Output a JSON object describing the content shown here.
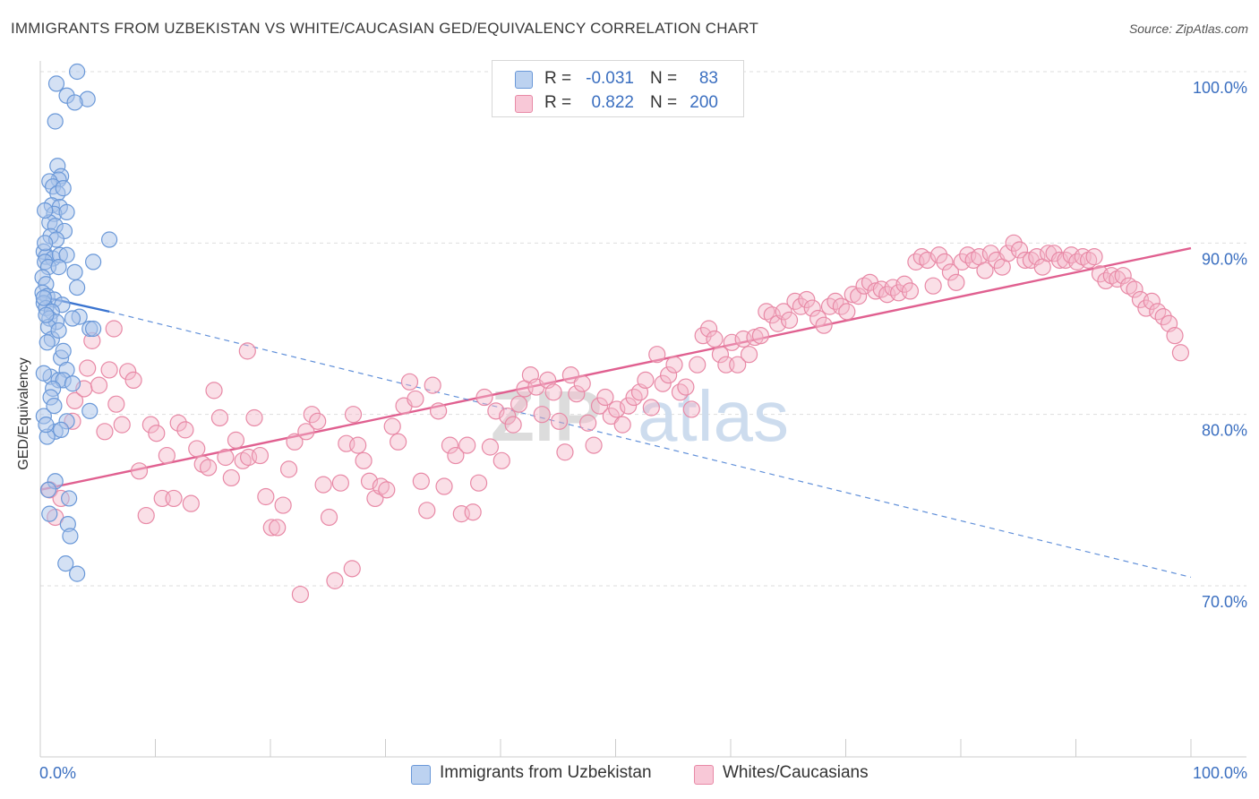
{
  "header": {
    "title": "IMMIGRANTS FROM UZBEKISTAN VS WHITE/CAUCASIAN GED/EQUIVALENCY CORRELATION CHART",
    "source": "Source: ZipAtlas.com"
  },
  "legend": {
    "rows": [
      {
        "r_label": "R =",
        "r_value": "-0.031",
        "n_label": "N =",
        "n_value": "83"
      },
      {
        "r_label": "R =",
        "r_value": "0.822",
        "n_label": "N =",
        "n_value": "200"
      }
    ]
  },
  "series_legend": [
    {
      "label": "Immigrants from Uzbekistan"
    },
    {
      "label": "Whites/Caucasians"
    }
  ],
  "watermark": {
    "zip": "ZIP",
    "atlas": "atlas"
  },
  "chart_data": {
    "type": "scatter",
    "title": "IMMIGRANTS FROM UZBEKISTAN VS WHITE/CAUCASIAN GED/EQUIVALENCY CORRELATION CHART",
    "xlabel": "",
    "ylabel": "GED/Equivalency",
    "xlim": [
      0,
      100
    ],
    "ylim": [
      60,
      101
    ],
    "x_tick_labels": [
      "0.0%",
      "100.0%"
    ],
    "y_ticks": [
      {
        "value": 100,
        "label": "100.0%"
      },
      {
        "value": 90,
        "label": "90.0%"
      },
      {
        "value": 80,
        "label": "80.0%"
      },
      {
        "value": 70,
        "label": "70.0%"
      }
    ],
    "grid": true,
    "colors": {
      "blue_fill": "#a9c4ea",
      "blue_stroke": "#6a98d8",
      "blue_line": "#3a74d0",
      "pink_fill": "#f4b7ca",
      "pink_stroke": "#e889a6",
      "pink_line": "#e06090",
      "label_blue": "#3b6fc0"
    },
    "series": [
      {
        "name": "Immigrants from Uzbekistan",
        "color": "#a9c4ea",
        "r": -0.031,
        "n": 83,
        "trend_solid": {
          "x": [
            0,
            6
          ],
          "y": [
            86.9,
            86.0
          ]
        },
        "trend_dashed": {
          "x": [
            6,
            100
          ],
          "y": [
            86.0,
            70.5
          ]
        },
        "points": [
          [
            3.2,
            100.0
          ],
          [
            1.4,
            99.3
          ],
          [
            4.1,
            98.4
          ],
          [
            2.3,
            98.6
          ],
          [
            3.0,
            98.2
          ],
          [
            1.3,
            97.1
          ],
          [
            1.5,
            94.5
          ],
          [
            1.8,
            93.9
          ],
          [
            1.6,
            93.7
          ],
          [
            0.8,
            93.6
          ],
          [
            1.1,
            93.3
          ],
          [
            1.5,
            92.9
          ],
          [
            1.0,
            92.2
          ],
          [
            1.7,
            92.1
          ],
          [
            1.2,
            91.7
          ],
          [
            2.3,
            91.8
          ],
          [
            0.8,
            91.2
          ],
          [
            1.3,
            91.0
          ],
          [
            2.1,
            90.7
          ],
          [
            0.9,
            90.4
          ],
          [
            1.4,
            90.2
          ],
          [
            6.0,
            90.2
          ],
          [
            0.3,
            89.5
          ],
          [
            0.5,
            89.2
          ],
          [
            1.1,
            89.1
          ],
          [
            1.7,
            89.3
          ],
          [
            2.3,
            89.3
          ],
          [
            0.4,
            88.9
          ],
          [
            0.7,
            88.6
          ],
          [
            1.6,
            88.6
          ],
          [
            4.6,
            88.9
          ],
          [
            0.2,
            88.0
          ],
          [
            0.5,
            87.6
          ],
          [
            0.2,
            87.1
          ],
          [
            3.2,
            87.4
          ],
          [
            0.6,
            86.9
          ],
          [
            1.2,
            86.7
          ],
          [
            0.3,
            86.5
          ],
          [
            0.5,
            86.2
          ],
          [
            1.9,
            86.4
          ],
          [
            1.0,
            86.0
          ],
          [
            0.8,
            85.6
          ],
          [
            3.4,
            85.7
          ],
          [
            1.4,
            85.4
          ],
          [
            2.8,
            85.6
          ],
          [
            0.7,
            85.1
          ],
          [
            4.3,
            85.0
          ],
          [
            1.0,
            84.4
          ],
          [
            0.6,
            84.2
          ],
          [
            4.6,
            85.0
          ],
          [
            1.8,
            83.3
          ],
          [
            2.3,
            82.6
          ],
          [
            0.9,
            82.2
          ],
          [
            1.6,
            82.0
          ],
          [
            2.0,
            82.0
          ],
          [
            2.8,
            81.8
          ],
          [
            1.1,
            81.5
          ],
          [
            0.9,
            81.0
          ],
          [
            4.3,
            80.2
          ],
          [
            0.3,
            79.9
          ],
          [
            2.3,
            79.6
          ],
          [
            1.3,
            79.0
          ],
          [
            1.8,
            79.1
          ],
          [
            0.6,
            78.7
          ],
          [
            1.3,
            76.1
          ],
          [
            0.7,
            75.6
          ],
          [
            2.5,
            75.1
          ],
          [
            0.8,
            74.2
          ],
          [
            2.4,
            73.6
          ],
          [
            2.6,
            72.9
          ],
          [
            2.2,
            71.3
          ],
          [
            3.2,
            70.7
          ],
          [
            0.4,
            90.0
          ],
          [
            0.3,
            86.8
          ],
          [
            0.5,
            85.8
          ],
          [
            1.6,
            84.9
          ],
          [
            2.0,
            83.7
          ],
          [
            0.3,
            82.4
          ],
          [
            1.2,
            80.5
          ],
          [
            0.5,
            79.4
          ],
          [
            3.0,
            88.3
          ],
          [
            0.4,
            91.9
          ],
          [
            2.0,
            93.2
          ]
        ]
      },
      {
        "name": "Whites/Caucasians",
        "color": "#f4b7ca",
        "r": 0.822,
        "n": 200,
        "trend": {
          "x": [
            0,
            100
          ],
          "y": [
            75.6,
            89.7
          ]
        },
        "points": [
          [
            0.8,
            75.6
          ],
          [
            1.3,
            74.0
          ],
          [
            1.8,
            75.1
          ],
          [
            2.8,
            79.6
          ],
          [
            3.0,
            80.8
          ],
          [
            3.8,
            81.5
          ],
          [
            4.1,
            82.7
          ],
          [
            4.5,
            84.3
          ],
          [
            5.1,
            81.7
          ],
          [
            5.6,
            79.0
          ],
          [
            6.0,
            82.6
          ],
          [
            6.6,
            80.6
          ],
          [
            7.1,
            79.4
          ],
          [
            7.6,
            82.5
          ],
          [
            8.1,
            82.0
          ],
          [
            8.6,
            76.7
          ],
          [
            9.2,
            74.1
          ],
          [
            9.6,
            79.4
          ],
          [
            10.1,
            78.9
          ],
          [
            10.6,
            75.1
          ],
          [
            11.0,
            77.6
          ],
          [
            11.6,
            75.1
          ],
          [
            12.0,
            79.5
          ],
          [
            12.6,
            79.1
          ],
          [
            13.1,
            74.8
          ],
          [
            13.6,
            78.0
          ],
          [
            14.1,
            77.1
          ],
          [
            14.6,
            76.9
          ],
          [
            15.1,
            81.4
          ],
          [
            15.6,
            79.8
          ],
          [
            16.1,
            77.5
          ],
          [
            16.6,
            76.3
          ],
          [
            17.0,
            78.5
          ],
          [
            17.6,
            77.3
          ],
          [
            18.1,
            77.5
          ],
          [
            18.6,
            79.8
          ],
          [
            19.1,
            77.6
          ],
          [
            19.6,
            75.2
          ],
          [
            20.1,
            73.4
          ],
          [
            20.6,
            73.4
          ],
          [
            21.1,
            74.7
          ],
          [
            21.6,
            76.8
          ],
          [
            22.1,
            78.4
          ],
          [
            22.6,
            69.5
          ],
          [
            23.1,
            79.0
          ],
          [
            23.6,
            80.0
          ],
          [
            24.1,
            79.6
          ],
          [
            24.6,
            75.9
          ],
          [
            25.1,
            74.0
          ],
          [
            25.6,
            70.3
          ],
          [
            26.1,
            76.0
          ],
          [
            26.6,
            78.3
          ],
          [
            27.1,
            71.0
          ],
          [
            27.6,
            78.2
          ],
          [
            28.1,
            77.3
          ],
          [
            28.6,
            76.1
          ],
          [
            29.1,
            75.1
          ],
          [
            29.6,
            75.8
          ],
          [
            30.1,
            75.6
          ],
          [
            30.6,
            79.3
          ],
          [
            31.1,
            78.4
          ],
          [
            31.6,
            80.5
          ],
          [
            32.1,
            81.9
          ],
          [
            32.6,
            80.9
          ],
          [
            33.1,
            76.1
          ],
          [
            33.6,
            74.4
          ],
          [
            34.1,
            81.7
          ],
          [
            34.6,
            80.2
          ],
          [
            35.1,
            75.8
          ],
          [
            35.6,
            78.2
          ],
          [
            36.1,
            77.6
          ],
          [
            36.6,
            74.2
          ],
          [
            37.1,
            78.2
          ],
          [
            37.6,
            74.3
          ],
          [
            38.1,
            76.0
          ],
          [
            38.6,
            81.0
          ],
          [
            39.1,
            78.1
          ],
          [
            39.6,
            80.2
          ],
          [
            40.1,
            77.3
          ],
          [
            40.6,
            79.9
          ],
          [
            41.1,
            79.4
          ],
          [
            41.6,
            80.6
          ],
          [
            42.1,
            81.5
          ],
          [
            42.6,
            82.3
          ],
          [
            43.1,
            81.6
          ],
          [
            43.6,
            80.0
          ],
          [
            44.1,
            82.0
          ],
          [
            44.6,
            81.3
          ],
          [
            45.1,
            79.6
          ],
          [
            45.6,
            77.8
          ],
          [
            46.1,
            82.3
          ],
          [
            46.6,
            81.2
          ],
          [
            47.1,
            81.8
          ],
          [
            47.6,
            79.5
          ],
          [
            48.1,
            78.2
          ],
          [
            48.6,
            80.5
          ],
          [
            49.1,
            81.0
          ],
          [
            49.6,
            79.9
          ],
          [
            50.1,
            80.3
          ],
          [
            50.6,
            79.4
          ],
          [
            51.1,
            80.5
          ],
          [
            51.6,
            81.0
          ],
          [
            52.1,
            81.3
          ],
          [
            52.6,
            82.0
          ],
          [
            53.1,
            80.4
          ],
          [
            53.6,
            83.5
          ],
          [
            54.1,
            81.8
          ],
          [
            54.6,
            82.3
          ],
          [
            55.1,
            82.9
          ],
          [
            55.6,
            81.3
          ],
          [
            56.1,
            81.6
          ],
          [
            56.6,
            80.3
          ],
          [
            57.1,
            82.9
          ],
          [
            57.6,
            84.6
          ],
          [
            58.1,
            85.0
          ],
          [
            58.6,
            84.4
          ],
          [
            59.1,
            83.5
          ],
          [
            59.6,
            82.9
          ],
          [
            60.1,
            84.2
          ],
          [
            60.6,
            82.9
          ],
          [
            61.1,
            84.4
          ],
          [
            61.6,
            83.5
          ],
          [
            62.1,
            84.5
          ],
          [
            62.6,
            84.6
          ],
          [
            63.1,
            86.0
          ],
          [
            63.6,
            85.8
          ],
          [
            64.1,
            85.3
          ],
          [
            64.6,
            86.0
          ],
          [
            65.1,
            85.5
          ],
          [
            65.6,
            86.6
          ],
          [
            66.1,
            86.3
          ],
          [
            66.6,
            86.7
          ],
          [
            67.1,
            86.2
          ],
          [
            67.6,
            85.6
          ],
          [
            68.1,
            85.2
          ],
          [
            68.6,
            86.3
          ],
          [
            69.1,
            86.6
          ],
          [
            69.6,
            86.3
          ],
          [
            70.1,
            86.0
          ],
          [
            70.6,
            87.0
          ],
          [
            71.1,
            86.9
          ],
          [
            71.6,
            87.5
          ],
          [
            72.1,
            87.7
          ],
          [
            72.6,
            87.2
          ],
          [
            73.1,
            87.3
          ],
          [
            73.6,
            87.0
          ],
          [
            74.1,
            87.4
          ],
          [
            74.6,
            87.1
          ],
          [
            75.1,
            87.6
          ],
          [
            75.6,
            87.2
          ],
          [
            76.1,
            88.9
          ],
          [
            76.6,
            89.2
          ],
          [
            77.1,
            89.0
          ],
          [
            77.6,
            87.5
          ],
          [
            78.1,
            89.3
          ],
          [
            78.6,
            88.9
          ],
          [
            79.1,
            88.3
          ],
          [
            79.6,
            87.7
          ],
          [
            80.1,
            88.9
          ],
          [
            80.6,
            89.3
          ],
          [
            81.1,
            89.0
          ],
          [
            81.6,
            89.2
          ],
          [
            82.1,
            88.4
          ],
          [
            82.6,
            89.4
          ],
          [
            83.1,
            89.0
          ],
          [
            83.6,
            88.6
          ],
          [
            84.1,
            89.4
          ],
          [
            84.6,
            90.0
          ],
          [
            85.1,
            89.6
          ],
          [
            85.6,
            89.0
          ],
          [
            86.1,
            89.0
          ],
          [
            86.6,
            89.2
          ],
          [
            87.1,
            88.6
          ],
          [
            87.6,
            89.4
          ],
          [
            88.1,
            89.4
          ],
          [
            88.6,
            89.0
          ],
          [
            89.1,
            89.0
          ],
          [
            89.6,
            89.3
          ],
          [
            90.1,
            88.9
          ],
          [
            90.6,
            89.2
          ],
          [
            91.1,
            89.0
          ],
          [
            91.6,
            89.2
          ],
          [
            92.1,
            88.2
          ],
          [
            92.6,
            87.8
          ],
          [
            93.1,
            88.1
          ],
          [
            93.6,
            87.9
          ],
          [
            94.1,
            88.1
          ],
          [
            94.6,
            87.5
          ],
          [
            95.1,
            87.3
          ],
          [
            95.6,
            86.7
          ],
          [
            96.1,
            86.2
          ],
          [
            96.6,
            86.6
          ],
          [
            97.1,
            86.0
          ],
          [
            97.6,
            85.7
          ],
          [
            98.1,
            85.3
          ],
          [
            98.6,
            84.6
          ],
          [
            99.1,
            83.6
          ],
          [
            18.0,
            83.7
          ],
          [
            6.4,
            85.0
          ],
          [
            27.2,
            80.0
          ]
        ]
      }
    ]
  }
}
